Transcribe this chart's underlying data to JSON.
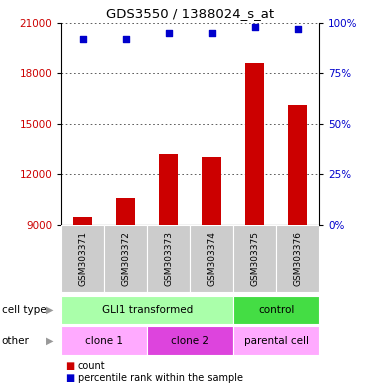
{
  "title": "GDS3550 / 1388024_s_at",
  "samples": [
    "GSM303371",
    "GSM303372",
    "GSM303373",
    "GSM303374",
    "GSM303375",
    "GSM303376"
  ],
  "counts": [
    9450,
    10600,
    13200,
    13000,
    18600,
    16100
  ],
  "percentile_ranks": [
    92,
    92,
    95,
    95,
    98,
    97
  ],
  "ylim_left": [
    9000,
    21000
  ],
  "ylim_right": [
    0,
    100
  ],
  "yticks_left": [
    9000,
    12000,
    15000,
    18000,
    21000
  ],
  "yticks_right": [
    0,
    25,
    50,
    75,
    100
  ],
  "bar_color": "#cc0000",
  "dot_color": "#0000cc",
  "bar_width": 0.45,
  "cell_type_row": {
    "label": "cell type",
    "groups": [
      {
        "text": "GLI1 transformed",
        "cols": [
          0,
          1,
          2,
          3
        ],
        "color": "#aaffaa"
      },
      {
        "text": "control",
        "cols": [
          4,
          5
        ],
        "color": "#44dd44"
      }
    ]
  },
  "other_row": {
    "label": "other",
    "groups": [
      {
        "text": "clone 1",
        "cols": [
          0,
          1
        ],
        "color": "#ffaaff"
      },
      {
        "text": "clone 2",
        "cols": [
          2,
          3
        ],
        "color": "#dd44dd"
      },
      {
        "text": "parental cell",
        "cols": [
          4,
          5
        ],
        "color": "#ffaaff"
      }
    ]
  },
  "legend": [
    {
      "color": "#cc0000",
      "label": "count"
    },
    {
      "color": "#0000cc",
      "label": "percentile rank within the sample"
    }
  ],
  "background_color": "#ffffff",
  "grid_color": "#444444",
  "tick_label_color_left": "#cc0000",
  "tick_label_color_right": "#0000cc",
  "xtick_bg_color": "#cccccc"
}
